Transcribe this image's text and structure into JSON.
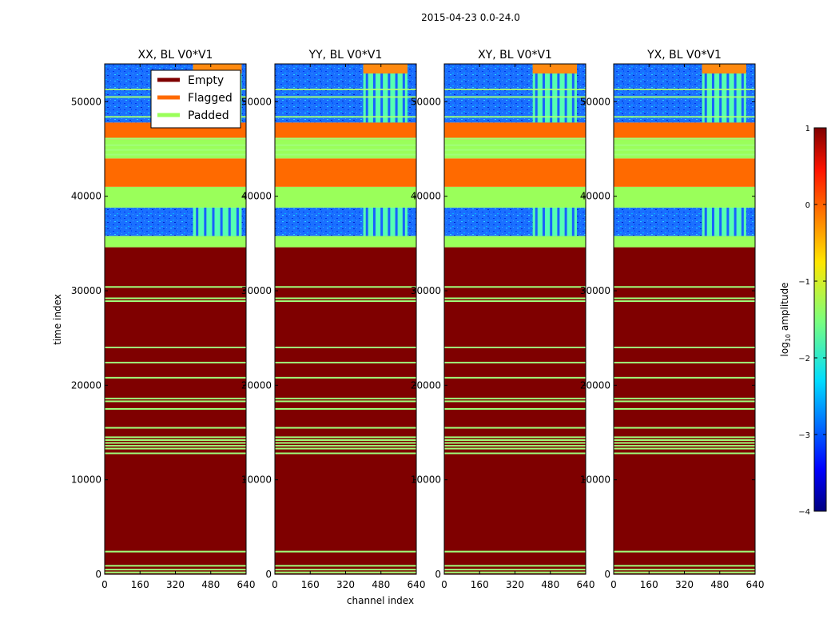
{
  "chart_data": {
    "type": "heatmap",
    "title": "2015-04-23 0.0-24.0",
    "xlabel": "channel index",
    "ylabel": "time index",
    "xlim": [
      0,
      640
    ],
    "ylim": [
      0,
      54000
    ],
    "xticks": [
      0,
      160,
      320,
      480,
      640
    ],
    "yticks": [
      0,
      10000,
      20000,
      30000,
      40000,
      50000
    ],
    "panels": [
      {
        "title": "XX, BL V0*V1",
        "bright_channels": [
          400,
          620
        ]
      },
      {
        "title": "YY, BL V0*V1",
        "bright_channels": [
          400,
          600
        ]
      },
      {
        "title": "XY, BL V0*V1",
        "bright_channels": [
          400,
          600
        ]
      },
      {
        "title": "YX, BL V0*V1",
        "bright_channels": [
          400,
          600
        ]
      }
    ],
    "legend": {
      "placement": "upper-left of first panel",
      "entries": [
        {
          "label": "Empty",
          "color": "#7f0000"
        },
        {
          "label": "Flagged",
          "color": "#ff6a00"
        },
        {
          "label": "Padded",
          "color": "#9aff5a"
        }
      ]
    },
    "row_states": [
      {
        "state": "empty",
        "from": 0,
        "to": 34600
      },
      {
        "state": "padded",
        "from": 34600,
        "to": 35800
      },
      {
        "state": "data",
        "from": 35800,
        "to": 38800
      },
      {
        "state": "padded",
        "from": 38800,
        "to": 41000
      },
      {
        "state": "flagged",
        "from": 41000,
        "to": 44000
      },
      {
        "state": "padded",
        "from": 44000,
        "to": 46000
      },
      {
        "state": "flagged",
        "from": 46000,
        "to": 47800
      },
      {
        "state": "data",
        "from": 47800,
        "to": 54000
      }
    ],
    "padded_stripes": [
      200,
      500,
      900,
      2400,
      12800,
      13300,
      13600,
      13900,
      14200,
      14500,
      15500,
      17500,
      18300,
      18600,
      20800,
      22400,
      24000,
      28900,
      29200,
      30400,
      44400,
      44900,
      45400,
      46100,
      48400,
      50500,
      51300
    ],
    "colorbar": {
      "label": "log10 amplitude",
      "label_main": "log",
      "label_sub": "10",
      "label_rest": " amplitude",
      "range": [
        -4,
        1
      ],
      "ticks": [
        "1",
        "0",
        "−1",
        "−2",
        "−3",
        "−4"
      ],
      "colormap": "jet"
    }
  }
}
